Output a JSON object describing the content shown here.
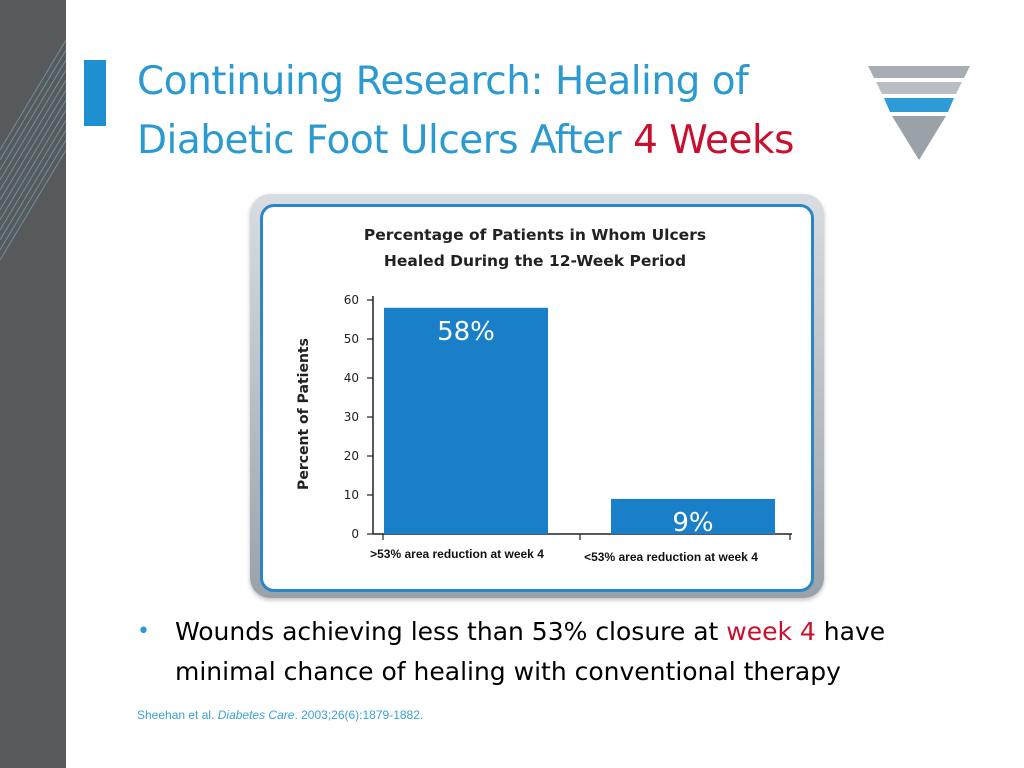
{
  "slide": {
    "title_part1": "Continuing Research: Healing of Diabetic Foot Ulcers After ",
    "title_highlight": "4 Weeks",
    "bullet_part1": "Wounds achieving less than 53% closure at ",
    "bullet_highlight": "week 4",
    "bullet_part2": " have minimal chance of healing with conventional therapy",
    "citation_authors": "Sheehan et al. ",
    "citation_journal": "Diabetes Care",
    "citation_rest": ". 2003;26(6):1879-1882."
  },
  "colors": {
    "sidebar": "#58595b",
    "accent": "#1e8fd0",
    "title": "#2b9ad0",
    "highlight": "#c8102e",
    "bar": "#1a7fc9"
  },
  "chart_data": {
    "type": "bar",
    "title": "Percentage of Patients in Whom Ulcers Healed During the 12-Week Period",
    "title_lines": [
      "Percentage of Patients in Whom Ulcers",
      "Healed During the 12-Week Period"
    ],
    "ylabel": "Percent of Patients",
    "xlabel": "",
    "categories": [
      ">53% area reduction at week 4",
      "<53% area reduction at week 4"
    ],
    "values": [
      58,
      9
    ],
    "data_labels": [
      "58%",
      "9%"
    ],
    "ylim": [
      0,
      60
    ],
    "yticks": [
      0,
      10,
      20,
      30,
      40,
      50,
      60
    ],
    "grid": false,
    "legend": "none"
  }
}
